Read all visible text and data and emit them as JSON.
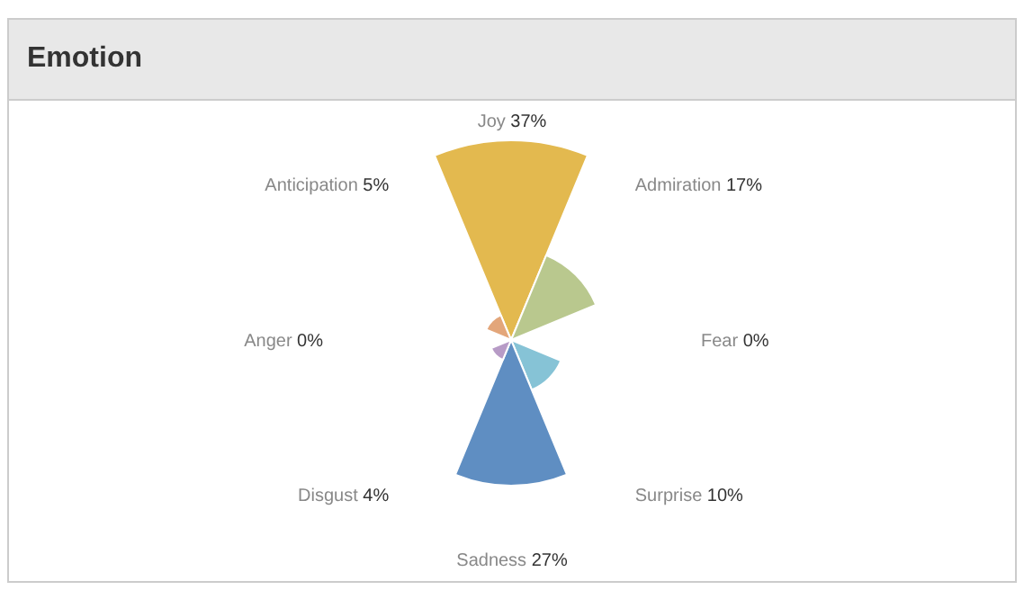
{
  "chart_data": {
    "type": "other",
    "title": "Emotion",
    "categories": [
      "Joy",
      "Admiration",
      "Fear",
      "Surprise",
      "Sadness",
      "Disgust",
      "Anger",
      "Anticipation"
    ],
    "values": [
      37,
      17,
      0,
      10,
      27,
      4,
      0,
      5
    ],
    "value_labels": [
      "37%",
      "17%",
      "0%",
      "10%",
      "27%",
      "4%",
      "0%",
      "5%"
    ],
    "colors": [
      "#e3b94f",
      "#b9c88e",
      "#9fba98",
      "#86c3d6",
      "#5f8ec2",
      "#b79bc6",
      "#e29a95",
      "#e3a67a"
    ],
    "legend": false
  }
}
